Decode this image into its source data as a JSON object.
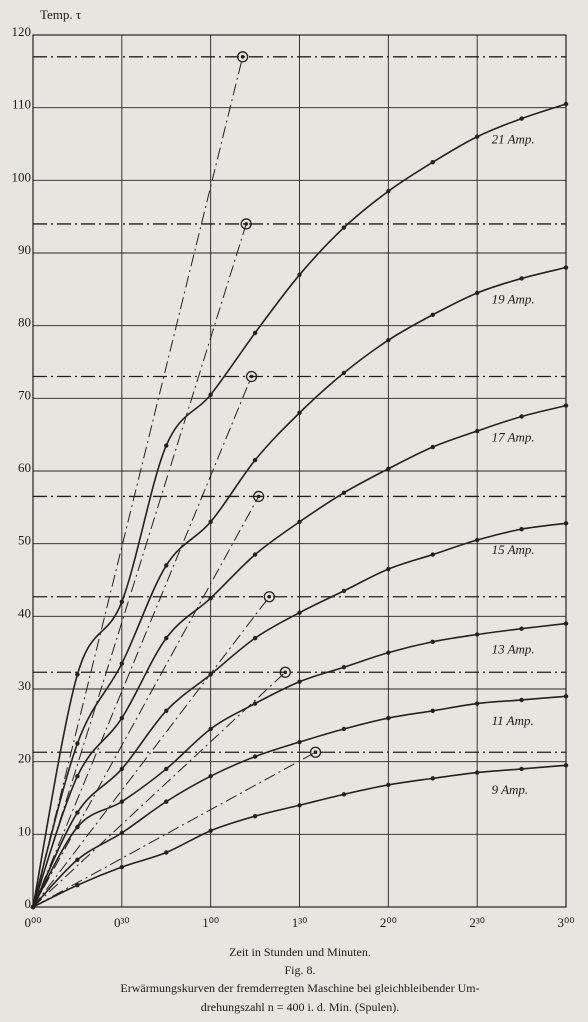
{
  "chart_data": {
    "type": "line",
    "y_label": "Temp. τ",
    "x_label": "Zeit in Stunden und Minuten.",
    "figure": "Fig. 8.",
    "caption": [
      "Erwärmungskurven der fremderregten Maschine bei gleichbleibender Um-",
      "drehungszahl n = 400 i. d. Min. (Spulen)."
    ],
    "x": [
      0,
      0.25,
      0.5,
      0.75,
      1,
      1.25,
      1.5,
      1.75,
      2,
      2.25,
      2.5,
      2.75,
      3
    ],
    "xlim": [
      0,
      3
    ],
    "xticks": [
      {
        "value": 0,
        "label": "0⁰⁰"
      },
      {
        "value": 0.5,
        "label": "0³⁰"
      },
      {
        "value": 1,
        "label": "1⁰⁰"
      },
      {
        "value": 1.5,
        "label": "1³⁰"
      },
      {
        "value": 2,
        "label": "2⁰⁰"
      },
      {
        "value": 2.5,
        "label": "2³⁰"
      },
      {
        "value": 3,
        "label": "3⁰⁰"
      }
    ],
    "ylim": [
      0,
      120
    ],
    "yticks": [
      0,
      10,
      20,
      30,
      40,
      50,
      60,
      70,
      80,
      90,
      100,
      110,
      120
    ],
    "grid": true,
    "color": "#222222",
    "series": [
      {
        "name": "21 Amp.",
        "values": [
          0,
          32,
          42,
          63.5,
          70.5,
          79,
          87,
          93.5,
          98.5,
          102.5,
          106,
          108.5,
          110.5
        ]
      },
      {
        "name": "19 Amp.",
        "values": [
          0,
          22.5,
          33.5,
          47,
          53,
          61.5,
          68,
          73.5,
          78,
          81.5,
          84.5,
          86.5,
          88
        ]
      },
      {
        "name": "17 Amp.",
        "values": [
          0,
          18,
          26,
          37,
          42.5,
          48.5,
          53,
          57,
          60.3,
          63.3,
          65.5,
          67.5,
          69
        ]
      },
      {
        "name": "15 Amp.",
        "values": [
          0,
          13,
          19,
          27,
          32,
          37,
          40.5,
          43.5,
          46.5,
          48.5,
          50.5,
          52,
          52.8
        ]
      },
      {
        "name": "13 Amp.",
        "values": [
          0,
          11,
          14.5,
          19,
          24.5,
          28,
          31,
          33,
          35,
          36.5,
          37.5,
          38.3,
          39
        ]
      },
      {
        "name": "11 Amp.",
        "values": [
          0,
          6.5,
          10.2,
          14.5,
          18,
          20.7,
          22.7,
          24.5,
          26,
          27,
          28,
          28.5,
          29
        ]
      },
      {
        "name": "9 Amp.",
        "values": [
          0,
          3,
          5.5,
          7.5,
          10.5,
          12.5,
          14,
          15.5,
          16.8,
          17.7,
          18.5,
          19,
          19.5
        ]
      }
    ],
    "limits": {
      "x": [
        1.18,
        1.2,
        1.23,
        1.27,
        1.33,
        1.42,
        1.59
      ],
      "values": [
        117,
        94,
        73,
        56.5,
        42.7,
        32.3,
        21.3
      ]
    }
  }
}
